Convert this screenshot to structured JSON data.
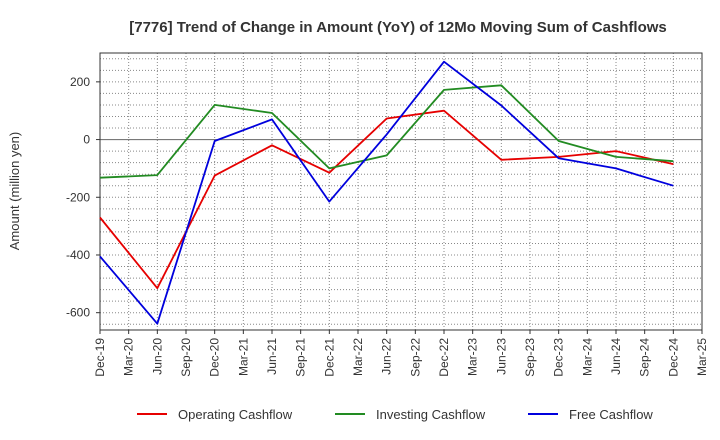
{
  "chart_data": {
    "type": "line",
    "title": "[7776]  Trend of Change in Amount (YoY) of 12Mo Moving Sum of Cashflows",
    "xlabel": "",
    "ylabel": "Amount (million yen)",
    "ylim": [
      -660,
      300
    ],
    "yticks": [
      200,
      0,
      -200,
      -400,
      -600
    ],
    "categories": [
      "Dec-19",
      "Mar-20",
      "Jun-20",
      "Sep-20",
      "Dec-20",
      "Mar-21",
      "Jun-21",
      "Sep-21",
      "Dec-21",
      "Mar-22",
      "Jun-22",
      "Sep-22",
      "Dec-22",
      "Mar-23",
      "Jun-23",
      "Sep-23",
      "Dec-23",
      "Mar-24",
      "Jun-24",
      "Sep-24",
      "Dec-24",
      "Mar-25"
    ],
    "series": [
      {
        "name": "Operating Cashflow",
        "color": "#e60000",
        "values": [
          -270,
          null,
          -515,
          null,
          -125,
          null,
          -20,
          null,
          -115,
          null,
          73,
          null,
          100,
          null,
          -70,
          null,
          -60,
          null,
          -40,
          null,
          -85,
          null
        ]
      },
      {
        "name": "Investing Cashflow",
        "color": "#228b22",
        "values": [
          -132,
          null,
          -123,
          null,
          120,
          null,
          92,
          null,
          -100,
          null,
          -55,
          null,
          172,
          null,
          188,
          null,
          -5,
          null,
          -60,
          null,
          -75,
          null
        ]
      },
      {
        "name": "Free Cashflow",
        "color": "#0000dd",
        "values": [
          -405,
          null,
          -638,
          null,
          -5,
          null,
          70,
          null,
          -215,
          null,
          18,
          null,
          270,
          null,
          118,
          null,
          -65,
          null,
          -100,
          null,
          -160,
          null
        ]
      }
    ]
  }
}
